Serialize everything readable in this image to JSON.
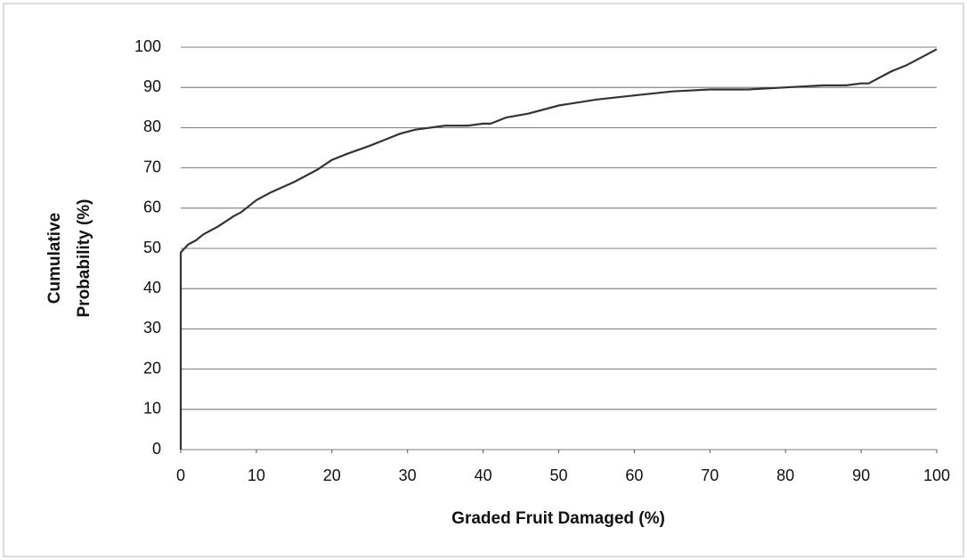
{
  "chart_data": {
    "type": "line",
    "xlabel": "Graded Fruit Damaged (%)",
    "ylabel": [
      "Cumulative",
      "Probability (%)"
    ],
    "x": [
      0,
      0,
      1,
      2,
      3,
      5,
      7,
      8,
      10,
      12,
      15,
      18,
      20,
      22,
      25,
      27,
      29,
      31,
      35,
      38,
      40,
      41,
      43,
      46,
      50,
      55,
      60,
      65,
      70,
      75,
      80,
      85,
      88,
      90,
      91,
      93,
      94,
      96,
      98,
      100
    ],
    "values": [
      0,
      49,
      51,
      52,
      53.5,
      55.5,
      58,
      59,
      62,
      64,
      66.5,
      69.5,
      72,
      73.5,
      75.5,
      77,
      78.5,
      79.5,
      80.5,
      80.5,
      81,
      81,
      82.5,
      83.5,
      85.5,
      87,
      88,
      89,
      89.5,
      89.5,
      90,
      90.5,
      90.5,
      91,
      91,
      93,
      94,
      95.5,
      97.5,
      99.5
    ],
    "color": "#333333",
    "xlim": [
      0,
      100
    ],
    "xticks": [
      0,
      10,
      20,
      30,
      40,
      50,
      60,
      70,
      80,
      90,
      100
    ],
    "ylim": [
      0,
      100
    ],
    "yticks": [
      0,
      10,
      20,
      30,
      40,
      50,
      60,
      70,
      80,
      90,
      100
    ],
    "grid": true
  }
}
